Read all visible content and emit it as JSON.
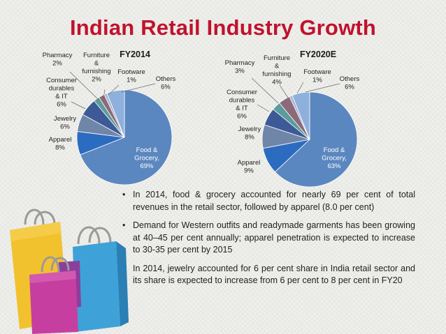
{
  "title": "Indian Retail Industry Growth",
  "chart_data": [
    {
      "type": "pie",
      "title": "FY2014",
      "slices": [
        {
          "label": [
            "Food &",
            "Grocery,",
            "69%"
          ],
          "value": 69,
          "color": "#5b87c0"
        },
        {
          "label": [
            "Apparel",
            "8%"
          ],
          "value": 8,
          "color": "#2b6cc1"
        },
        {
          "label": [
            "Jewelry",
            "6%"
          ],
          "value": 6,
          "color": "#7086a8"
        },
        {
          "label": [
            "Consumer",
            "durables",
            "& IT",
            "6%"
          ],
          "value": 6,
          "color": "#3d5a97"
        },
        {
          "label": [
            "Pharmacy",
            "2%"
          ],
          "value": 2,
          "color": "#5b9c9c"
        },
        {
          "label": [
            "Furniture",
            "&",
            "furnishing",
            "2%"
          ],
          "value": 2,
          "color": "#8d6a79"
        },
        {
          "label": [
            "Footware",
            "1%"
          ],
          "value": 1,
          "color": "#a9b6cf"
        },
        {
          "label": [
            "Others",
            "6%"
          ],
          "value": 6,
          "color": "#8fb0dc"
        }
      ]
    },
    {
      "type": "pie",
      "title": "FY2020E",
      "slices": [
        {
          "label": [
            "Food &",
            "Grocery,",
            "63%"
          ],
          "value": 63,
          "color": "#5b87c0"
        },
        {
          "label": [
            "Apparel",
            "9%"
          ],
          "value": 9,
          "color": "#2b6cc1"
        },
        {
          "label": [
            "Jewelry",
            "8%"
          ],
          "value": 8,
          "color": "#7086a8"
        },
        {
          "label": [
            "Consumer",
            "durables",
            "& IT",
            "6%"
          ],
          "value": 6,
          "color": "#3d5a97"
        },
        {
          "label": [
            "Pharmacy",
            "3%"
          ],
          "value": 3,
          "color": "#5b9c9c"
        },
        {
          "label": [
            "Furniture",
            "&",
            "furnishing",
            "4%"
          ],
          "value": 4,
          "color": "#8d6a79"
        },
        {
          "label": [
            "Footware",
            "1%"
          ],
          "value": 1,
          "color": "#a9b6cf"
        },
        {
          "label": [
            "Others",
            "6%"
          ],
          "value": 6,
          "color": "#8fb0dc"
        }
      ]
    }
  ],
  "bullets": [
    "In 2014, food & grocery accounted for nearly 69 per cent of total revenues in the retail sector, followed by apparel (8.0 per cent)",
    "Demand for Western outfits and readymade garments has been growing at 40–45 per cent annually; apparel penetration is expected to increase to 30-35 per cent by 2015",
    "In 2014, jewelry accounted for 6 per cent share in India retail sector and its share is expected to increase from 6 per cent to 8 per cent in FY20"
  ],
  "colors": {
    "title": "#c0122c",
    "bag_yellow": "#f2c12e",
    "bag_blue": "#3ea2d8",
    "bag_pink": "#c63fa0",
    "bag_purple": "#8b3f9b"
  }
}
